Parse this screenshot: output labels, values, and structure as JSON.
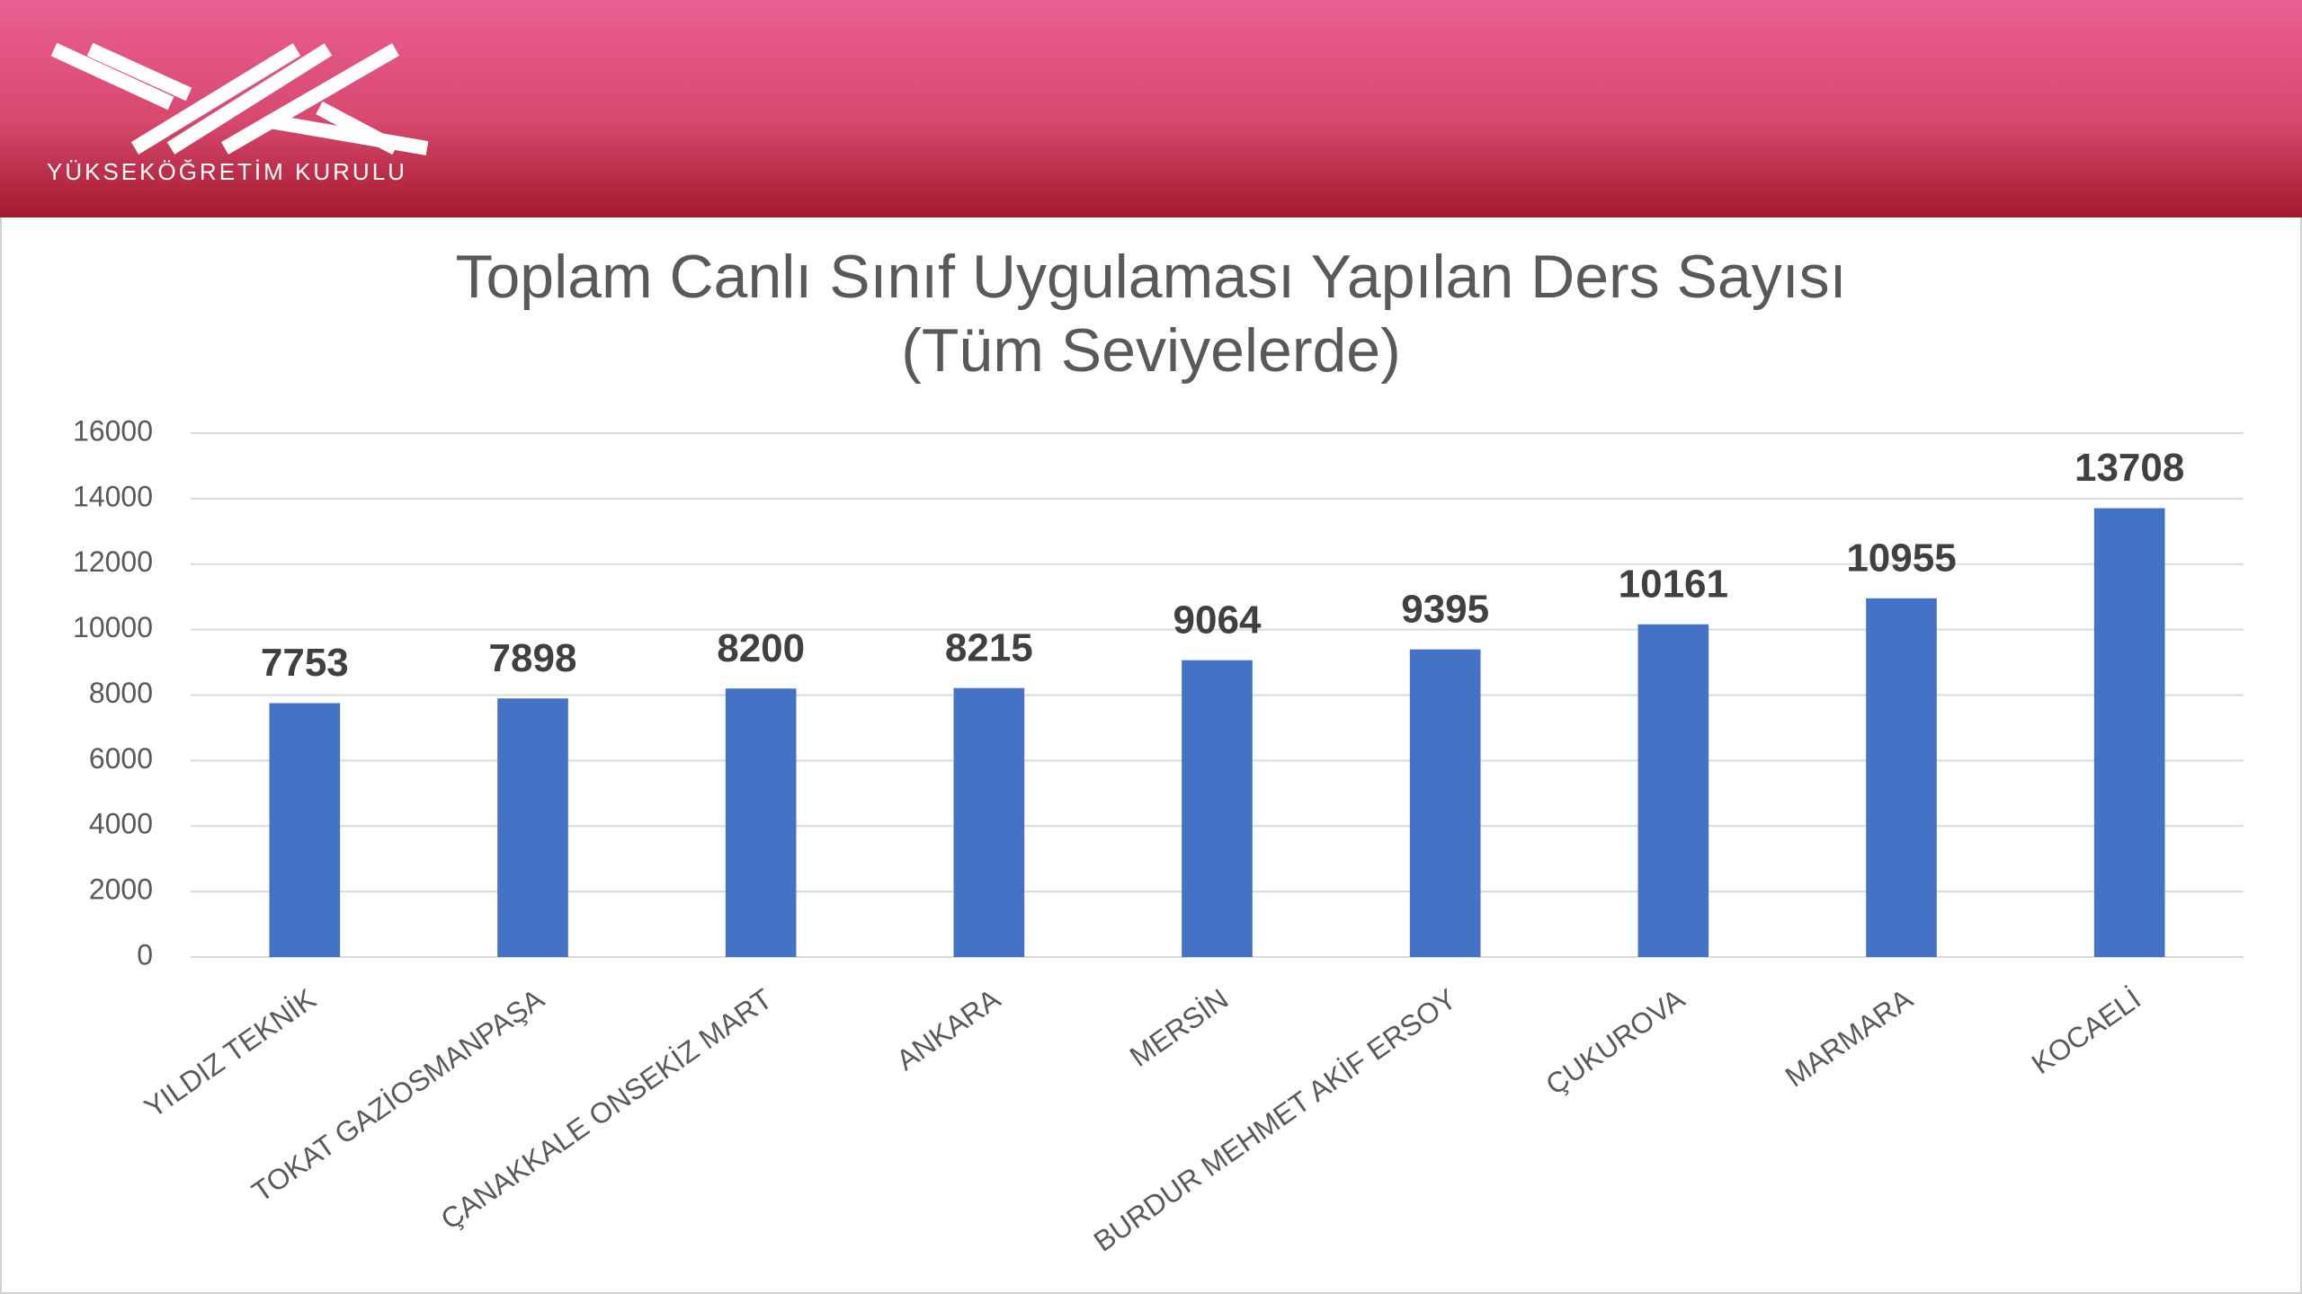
{
  "header": {
    "org_name": "YÜKSEKÖĞRETİM KURULU"
  },
  "chart_data": {
    "type": "bar",
    "title": "Toplam Canlı Sınıf Uygulaması Yapılan Ders Sayısı",
    "subtitle": "(Tüm Seviyelerde)",
    "categories": [
      "YILDIZ TEKNİK",
      "TOKAT GAZİOSMANPAŞA",
      "ÇANAKKALE ONSEKİZ MART",
      "ANKARA",
      "MERSİN",
      "BURDUR MEHMET AKİF ERSOY",
      "ÇUKUROVA",
      "MARMARA",
      "KOCAELİ"
    ],
    "values": [
      7753,
      7898,
      8200,
      8215,
      9064,
      9395,
      10161,
      10955,
      13708
    ],
    "color": "#4472c4",
    "ylim": [
      0,
      16000
    ],
    "yticks": [
      0,
      2000,
      4000,
      6000,
      8000,
      10000,
      12000,
      14000,
      16000
    ],
    "grid": true
  }
}
